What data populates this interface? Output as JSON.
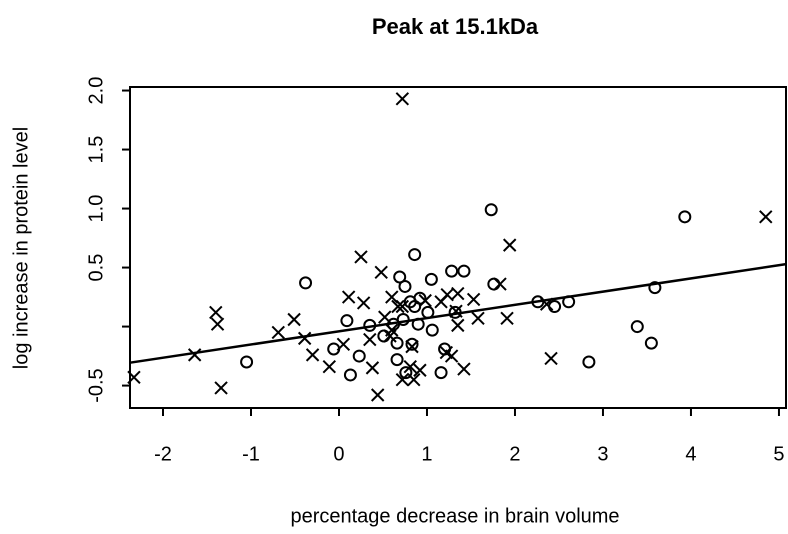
{
  "chart_data": {
    "type": "scatter",
    "title": "Peak at 15.1kDa",
    "x_label": "percentage decrease in brain volume",
    "y_label": "log increase in protein level",
    "xlim": [
      -2.375,
      5.08
    ],
    "ylim": [
      -0.69,
      2.03
    ],
    "xticks": [
      -2,
      -1,
      0,
      1,
      2,
      3,
      4,
      5
    ],
    "yticks": [
      {
        "value": -0.5,
        "label": "-0.5"
      },
      {
        "value": 0,
        "label": null
      },
      {
        "value": 0.5,
        "label": "0.5"
      },
      {
        "value": 1,
        "label": "1.0"
      },
      {
        "value": 1.5,
        "label": "1.5"
      },
      {
        "value": 2,
        "label": "2.0"
      }
    ],
    "series": [
      {
        "marker": "circle",
        "color": "#000000",
        "x": [
          -0.38,
          1.73,
          3.93,
          0.86,
          0.69,
          1.05,
          1.28,
          1.42,
          1.76,
          0.75,
          3.59,
          2.26,
          2.45,
          2.61,
          0.81,
          0.92,
          0.86,
          0.09,
          0.62,
          0.73,
          1.01,
          0.9,
          1.06,
          0.35,
          0.51,
          0.66,
          0.83,
          -0.06,
          0.23,
          0.66,
          -1.05,
          2.84,
          3.39,
          3.55,
          0.13,
          1.16,
          0.76,
          1.2,
          1.32
        ],
        "values": [
          0.37,
          0.99,
          0.93,
          0.61,
          0.42,
          0.4,
          0.47,
          0.47,
          0.36,
          0.34,
          0.33,
          0.21,
          0.17,
          0.21,
          0.21,
          0.24,
          0.17,
          0.05,
          0.02,
          0.06,
          0.12,
          0.02,
          -0.03,
          0.01,
          -0.08,
          -0.14,
          -0.15,
          -0.19,
          -0.25,
          -0.28,
          -0.3,
          -0.3,
          0.0,
          -0.14,
          -0.41,
          -0.39,
          -0.39,
          -0.19,
          0.12
        ]
      },
      {
        "marker": "cross",
        "color": "#000000",
        "x": [
          0.72,
          4.85,
          1.94,
          0.25,
          0.48,
          1.83,
          0.11,
          -1.4,
          -1.38,
          -0.51,
          -0.69,
          -0.39,
          -1.64,
          -2.33,
          -1.34,
          -0.3,
          -0.11,
          0.05,
          0.38,
          0.44,
          0.28,
          0.52,
          0.6,
          0.72,
          0.83,
          0.72,
          0.85,
          0.92,
          0.81,
          1.22,
          1.28,
          1.42,
          1.23,
          1.35,
          1.53,
          1.58,
          1.91,
          1.35,
          1.33,
          2.36,
          2.41,
          1.16,
          0.98,
          0.67,
          0.6,
          0.35,
          0.58
        ],
        "values": [
          1.93,
          0.93,
          0.69,
          0.59,
          0.46,
          0.36,
          0.25,
          0.12,
          0.02,
          0.06,
          -0.05,
          -0.1,
          -0.24,
          -0.43,
          -0.52,
          -0.24,
          -0.34,
          -0.15,
          -0.35,
          -0.58,
          0.2,
          0.08,
          0.25,
          0.17,
          -0.17,
          -0.45,
          -0.45,
          -0.37,
          -0.34,
          -0.22,
          -0.25,
          -0.36,
          0.27,
          0.28,
          0.23,
          0.07,
          0.07,
          0.01,
          0.13,
          0.19,
          -0.27,
          0.21,
          0.22,
          0.17,
          -0.03,
          -0.11,
          -0.08
        ]
      }
    ],
    "fit": {
      "intercept": -0.04,
      "slope": 0.112
    }
  }
}
